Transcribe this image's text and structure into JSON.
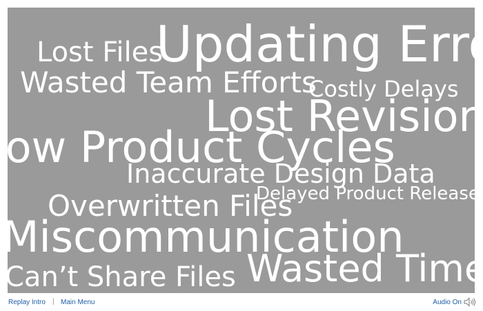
{
  "word_cloud": [
    {
      "id": "lost-files",
      "text": "Lost Files"
    },
    {
      "id": "updating-errors",
      "text": "Updating Errors"
    },
    {
      "id": "wasted-team-efforts",
      "text": "Wasted Team Efforts"
    },
    {
      "id": "costly-delays",
      "text": "Costly Delays"
    },
    {
      "id": "lost-revisions",
      "text": "Lost Revisions"
    },
    {
      "id": "slow-product-cycles",
      "text": "Slow Product Cycles"
    },
    {
      "id": "inaccurate-design-data",
      "text": "Inaccurate Design Data"
    },
    {
      "id": "delayed-product-releases",
      "text": "Delayed Product Releases"
    },
    {
      "id": "overwritten-files",
      "text": "Overwritten Files"
    },
    {
      "id": "miscommunication",
      "text": "Miscommunication"
    },
    {
      "id": "cant-share-files",
      "text": "Can’t Share Files"
    },
    {
      "id": "wasted-time",
      "text": "Wasted Time"
    }
  ],
  "footer": {
    "replay_intro": "Replay Intro",
    "separator": "|",
    "main_menu": "Main Menu",
    "audio_label": "Audio On",
    "audio_icon": "speaker-icon"
  },
  "colors": {
    "panel_bg": "#9a9a9a",
    "word_color": "#ffffff",
    "link_color": "#1f5da6"
  }
}
